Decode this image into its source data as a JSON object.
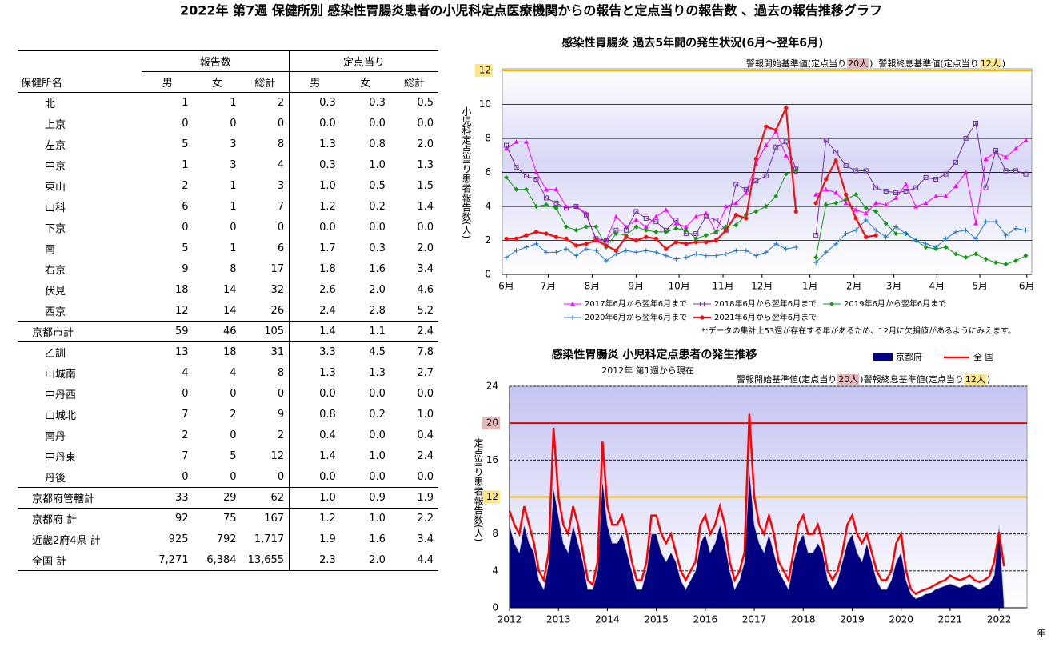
{
  "title": "2022年 第7週 保健所別 感染性胃腸炎患者の小児科定点医療機関からの報告と定点当りの報告数 、過去の報告推移グラフ",
  "table": {
    "name_header": "保健所名",
    "groups": [
      "報告数",
      "定点当り"
    ],
    "columns": [
      "男",
      "女",
      "総計",
      "男",
      "女",
      "総計"
    ],
    "rows": [
      [
        "北",
        "1",
        "1",
        "2",
        "0.3",
        "0.3",
        "0.5"
      ],
      [
        "上京",
        "0",
        "0",
        "0",
        "0.0",
        "0.0",
        "0.0"
      ],
      [
        "左京",
        "5",
        "3",
        "8",
        "1.3",
        "0.8",
        "2.0"
      ],
      [
        "中京",
        "1",
        "3",
        "4",
        "0.3",
        "1.0",
        "1.3"
      ],
      [
        "東山",
        "2",
        "1",
        "3",
        "1.0",
        "0.5",
        "1.5"
      ],
      [
        "山科",
        "6",
        "1",
        "7",
        "1.2",
        "0.2",
        "1.4"
      ],
      [
        "下京",
        "0",
        "0",
        "0",
        "0.0",
        "0.0",
        "0.0"
      ],
      [
        "南",
        "5",
        "1",
        "6",
        "1.7",
        "0.3",
        "2.0"
      ],
      [
        "右京",
        "9",
        "8",
        "17",
        "1.8",
        "1.6",
        "3.4"
      ],
      [
        "伏見",
        "18",
        "14",
        "32",
        "2.6",
        "2.0",
        "4.6"
      ],
      [
        "西京",
        "12",
        "14",
        "26",
        "2.4",
        "2.8",
        "5.2"
      ],
      [
        "京都市計",
        "59",
        "46",
        "105",
        "1.4",
        "1.1",
        "2.4"
      ],
      [
        "乙訓",
        "13",
        "18",
        "31",
        "3.3",
        "4.5",
        "7.8"
      ],
      [
        "山城南",
        "4",
        "4",
        "8",
        "1.3",
        "1.3",
        "2.7"
      ],
      [
        "中丹西",
        "0",
        "0",
        "0",
        "0.0",
        "0.0",
        "0.0"
      ],
      [
        "山城北",
        "7",
        "2",
        "9",
        "0.8",
        "0.2",
        "1.0"
      ],
      [
        "南丹",
        "2",
        "0",
        "2",
        "0.4",
        "0.0",
        "0.4"
      ],
      [
        "中丹東",
        "7",
        "5",
        "12",
        "1.4",
        "1.0",
        "2.4"
      ],
      [
        "丹後",
        "0",
        "0",
        "0",
        "0.0",
        "0.0",
        "0.0"
      ],
      [
        "京都府管轄計",
        "33",
        "29",
        "62",
        "1.0",
        "0.9",
        "1.9"
      ],
      [
        "京都府 計",
        "92",
        "75",
        "167",
        "1.2",
        "1.0",
        "2.2"
      ],
      [
        "近畿2府4県 計",
        "925",
        "792",
        "1,717",
        "1.9",
        "1.6",
        "3.4"
      ],
      [
        "全国 計",
        "7,271",
        "6,384",
        "13,655",
        "2.3",
        "2.0",
        "4.4"
      ]
    ]
  },
  "chart_data": [
    {
      "type": "line",
      "title": "感染性胃腸炎 過去5年間の発生状況(6月～翌年6月)",
      "y_label": "小児科定点当り患者報告数(人)",
      "alarm_note": [
        "警報開始基準値(定点当り",
        "20人",
        ")  警報終息基準値(定点当り",
        "12人",
        ")"
      ],
      "alarm_note_colors": [
        null,
        "#e8b8b8",
        null,
        "#fde68a",
        null
      ],
      "note": "*:データの集計上53週が存在する年があるため、12月に欠損値があるようにみえます。",
      "x": [
        0,
        1,
        2,
        3,
        4,
        5,
        6,
        7,
        8,
        9,
        10,
        11,
        12,
        13,
        14,
        15,
        16,
        17,
        18,
        19,
        20,
        21,
        22,
        23,
        24,
        25,
        26,
        27,
        28,
        29,
        30,
        31,
        32,
        33,
        34,
        35,
        36,
        37,
        38,
        39,
        40,
        41,
        42,
        43,
        44,
        45,
        46,
        47,
        48,
        49,
        50,
        51,
        52
      ],
      "xlim": [
        -0.4,
        52.6
      ],
      "xticks": [
        {
          "value": 0,
          "label": "6月"
        },
        {
          "value": 4.2,
          "label": "7月"
        },
        {
          "value": 8.6,
          "label": "8月"
        },
        {
          "value": 13,
          "label": "9月"
        },
        {
          "value": 17.3,
          "label": "10月"
        },
        {
          "value": 21.7,
          "label": "11月"
        },
        {
          "value": 25.6,
          "label": "12月"
        },
        {
          "value": 30.4,
          "label": "1月"
        },
        {
          "value": 34.8,
          "label": "2月"
        },
        {
          "value": 38.8,
          "label": "3月"
        },
        {
          "value": 43.1,
          "label": "4月"
        },
        {
          "value": 47.4,
          "label": "5月"
        },
        {
          "value": 52.1,
          "label": "6月"
        }
      ],
      "ylim": [
        0,
        12.1
      ],
      "yticks": [
        0,
        2,
        4,
        6,
        8,
        10,
        12
      ],
      "grid": true,
      "grid_style": "solid",
      "thresholds": [
        {
          "value": 12,
          "color": "#f0b400",
          "tick_bg": "#fde68a"
        }
      ],
      "series": [
        {
          "name": "2017年6月から翌年6月まで",
          "color": "#ff00ff",
          "marker": "triangle",
          "values": [
            7.4,
            7.8,
            7.8,
            6.0,
            5.0,
            5.0,
            4.0,
            4.0,
            3.6,
            2.0,
            2.0,
            3.4,
            2.8,
            3.2,
            2.8,
            3.4,
            3.8,
            3.0,
            2.8,
            3.4,
            3.6,
            2.5,
            4.0,
            4.2,
            4.8,
            6.5,
            7.6,
            8.4,
            7.0,
            6.0,
            null,
            4.7,
            5.0,
            4.8,
            4.2,
            3.8,
            3.6,
            4.2,
            4.1,
            4.5,
            5.3,
            4.0,
            4.2,
            4.6,
            4.6,
            5.2,
            6.0,
            3.0,
            6.8,
            7.2,
            6.9,
            7.4,
            7.9
          ]
        },
        {
          "name": "2018年6月から翌年6月まで",
          "color": "#7030a0",
          "marker": "square",
          "values": [
            7.6,
            6.3,
            5.8,
            5.6,
            4.5,
            4.2,
            3.9,
            4.0,
            3.5,
            2.1,
            2.0,
            2.6,
            2.6,
            3.7,
            3.3,
            3.1,
            2.6,
            3.2,
            2.4,
            2.4,
            3.4,
            3.2,
            2.6,
            5.3,
            5.0,
            5.5,
            5.8,
            7.5,
            7.8,
            6.2,
            null,
            2.3,
            7.9,
            7.2,
            6.4,
            6.1,
            6.1,
            5.1,
            4.9,
            4.8,
            4.9,
            5.1,
            5.7,
            5.6,
            5.9,
            6.6,
            8.0,
            8.9,
            5.1,
            7.3,
            6.1,
            6.1,
            5.9
          ]
        },
        {
          "name": "2019年6月から翌年6月まで",
          "color": "#119911",
          "marker": "diamond",
          "values": [
            5.7,
            5.0,
            5.0,
            4.0,
            4.1,
            3.9,
            2.8,
            2.6,
            2.8,
            2.8,
            1.6,
            2.4,
            2.3,
            2.8,
            2.6,
            2.5,
            2.5,
            2.7,
            2.6,
            2.1,
            2.3,
            2.5,
            2.8,
            2.9,
            3.5,
            3.7,
            4.0,
            4.6,
            5.9,
            6.1,
            null,
            1.0,
            4.1,
            4.2,
            4.4,
            4.7,
            3.9,
            3.7,
            3.0,
            2.4,
            2.4,
            2.0,
            1.6,
            1.5,
            1.6,
            1.2,
            1.0,
            1.2,
            0.9,
            0.7,
            0.6,
            0.8,
            1.1
          ]
        },
        {
          "name": "2020年6月から翌年6月まで",
          "color": "#1e78d2",
          "marker": "cross",
          "values": [
            1.0,
            1.4,
            1.6,
            1.8,
            1.3,
            1.3,
            1.5,
            1.1,
            1.5,
            1.4,
            0.8,
            1.2,
            1.4,
            1.3,
            1.4,
            1.3,
            1.1,
            0.9,
            1.0,
            1.2,
            1.1,
            1.1,
            1.2,
            1.4,
            1.4,
            1.1,
            1.3,
            1.8,
            1.5,
            1.6,
            null,
            0.7,
            1.3,
            1.8,
            2.4,
            2.6,
            3.2,
            2.6,
            2.2,
            2.8,
            2.4,
            2.0,
            1.8,
            1.6,
            2.1,
            2.5,
            2.6,
            2.1,
            3.1,
            3.1,
            2.3,
            2.7,
            2.6
          ]
        },
        {
          "name": "2021年6月から翌年6月まで",
          "color": "#ee1111",
          "marker": "circle",
          "line_width": 2.2,
          "values": [
            2.1,
            2.1,
            2.3,
            2.5,
            2.4,
            2.2,
            2.1,
            1.7,
            1.8,
            2.0,
            1.7,
            1.4,
            2.2,
            2.0,
            2.2,
            2.1,
            1.5,
            1.9,
            1.8,
            1.9,
            1.9,
            2.0,
            2.6,
            3.5,
            3.3,
            6.8,
            8.7,
            8.5,
            9.8,
            3.7,
            null,
            4.2,
            5.6,
            6.7,
            4.7,
            3.3,
            2.2,
            2.3,
            null,
            null,
            null,
            null,
            null,
            null,
            null,
            null,
            null,
            null,
            null,
            null,
            null,
            null,
            null
          ]
        }
      ]
    },
    {
      "type": "area",
      "title": "感染性胃腸炎 小児科定点患者の発生推移",
      "subtitle": "2012年 第1週から現在",
      "y_label": "定点当り患者報告数(人)",
      "x_label": "年",
      "alarm_note": [
        "警報開始基準値(定点当り",
        "20人",
        ")警報終息基準値(定点当り",
        "12人",
        ")"
      ],
      "alarm_note_colors": [
        null,
        "#e8b8b8",
        null,
        "#fde68a",
        null
      ],
      "x": [
        2012,
        2012.1,
        2012.2,
        2012.3,
        2012.4,
        2012.5,
        2012.6,
        2012.7,
        2012.8,
        2012.9,
        2013,
        2013.1,
        2013.2,
        2013.3,
        2013.4,
        2013.5,
        2013.6,
        2013.7,
        2013.8,
        2013.9,
        2014,
        2014.1,
        2014.2,
        2014.3,
        2014.4,
        2014.5,
        2014.6,
        2014.7,
        2014.8,
        2014.9,
        2015,
        2015.1,
        2015.2,
        2015.3,
        2015.4,
        2015.5,
        2015.6,
        2015.7,
        2015.8,
        2015.9,
        2016,
        2016.1,
        2016.2,
        2016.3,
        2016.4,
        2016.5,
        2016.6,
        2016.7,
        2016.8,
        2016.9,
        2017,
        2017.1,
        2017.2,
        2017.3,
        2017.4,
        2017.5,
        2017.6,
        2017.7,
        2017.8,
        2017.9,
        2018,
        2018.1,
        2018.2,
        2018.3,
        2018.4,
        2018.5,
        2018.6,
        2018.7,
        2018.8,
        2018.9,
        2019,
        2019.1,
        2019.2,
        2019.3,
        2019.4,
        2019.5,
        2019.6,
        2019.7,
        2019.8,
        2019.9,
        2020,
        2020.1,
        2020.2,
        2020.3,
        2020.4,
        2020.5,
        2020.6,
        2020.7,
        2020.8,
        2020.9,
        2021,
        2021.1,
        2021.2,
        2021.3,
        2021.4,
        2021.5,
        2021.6,
        2021.7,
        2021.8,
        2021.9,
        2022,
        2022.1
      ],
      "xlim": [
        2012,
        2022.57
      ],
      "xticks": [
        2012,
        2013,
        2014,
        2015,
        2016,
        2017,
        2018,
        2019,
        2020,
        2021,
        2022
      ],
      "ylim": [
        0,
        24
      ],
      "yticks": [
        0,
        4,
        8,
        12,
        16,
        20,
        24
      ],
      "grid": true,
      "grid_style": "dashed",
      "thresholds": [
        {
          "value": 20,
          "color": "#dd0000",
          "tick_bg": "#e8b8b8"
        },
        {
          "value": 12,
          "color": "#f0b400",
          "tick_bg": "#fde68a"
        }
      ],
      "series": [
        {
          "name": "京都府",
          "color": "#000080",
          "values": [
            9,
            7,
            6,
            9,
            7,
            6,
            3,
            2,
            5,
            13,
            10,
            7,
            6,
            9,
            7,
            5,
            2,
            2,
            4,
            14,
            9,
            7,
            7,
            8,
            6,
            4,
            2,
            2,
            4,
            8,
            8,
            6,
            5,
            6,
            5,
            3,
            2,
            3,
            4,
            7,
            8,
            6,
            7,
            9,
            7,
            4,
            2,
            3,
            5,
            15,
            9,
            7,
            6,
            8,
            6,
            4,
            3,
            2,
            5,
            7,
            8,
            6,
            6,
            7,
            6,
            3,
            2,
            3,
            5,
            7,
            8,
            6,
            5,
            7,
            5,
            3,
            2,
            2,
            3,
            5,
            6,
            3,
            1.5,
            1,
            1.2,
            1.5,
            1.6,
            2,
            2.2,
            2.4,
            2.6,
            2.4,
            2.2,
            2.5,
            2.6,
            2.3,
            2,
            2.3,
            2.6,
            3.5,
            9,
            0.5
          ]
        },
        {
          "name": "全 国",
          "color": "#ff0000",
          "style": "line",
          "line_width": 2.5,
          "values": [
            10.5,
            9,
            8,
            11,
            9,
            7,
            4,
            3,
            6,
            19.5,
            12,
            9,
            8,
            11,
            9,
            6,
            3,
            2.5,
            5,
            18,
            11,
            9,
            9,
            10,
            8,
            5,
            3,
            3,
            5,
            10,
            10,
            8,
            7,
            8,
            6,
            4,
            3,
            4,
            5,
            9,
            10,
            8,
            9,
            11,
            9,
            5,
            3,
            4,
            6,
            21,
            12,
            9,
            8,
            10,
            8,
            5,
            4,
            3,
            6,
            9,
            10,
            8,
            8,
            9,
            7,
            4,
            3,
            4,
            6,
            9,
            10,
            8,
            7,
            8,
            6,
            4,
            3,
            3,
            4,
            7,
            8,
            4,
            2,
            1.5,
            1.8,
            2,
            2.2,
            2.5,
            2.8,
            3,
            3.5,
            3.2,
            3,
            3.2,
            3.5,
            3,
            2.8,
            3,
            3.4,
            5,
            8.2,
            4.5
          ]
        }
      ]
    }
  ]
}
